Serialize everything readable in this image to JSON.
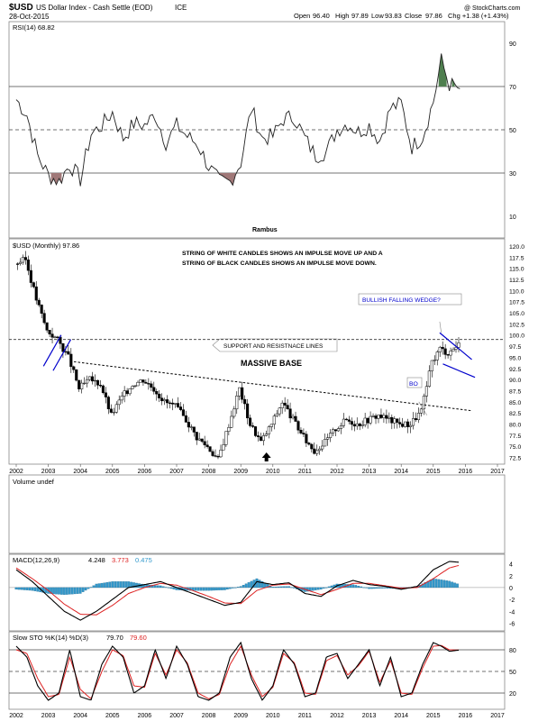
{
  "header": {
    "symbol": "$USD",
    "name": "US Dollar Index - Cash Settle (EOD)",
    "exchange": "ICE",
    "date": "28-Oct-2015",
    "brand": "@ StockCharts.com",
    "quote": {
      "open_label": "Open",
      "open": "96.40",
      "high_label": "High",
      "high": "97.89",
      "low_label": "Low",
      "low": "93.83",
      "close_label": "Close",
      "close": "97.86",
      "change": "Chg +1.38 (+1.43%)"
    }
  },
  "colors": {
    "up": "#ffffff",
    "down": "#000000",
    "annotation_blue": "#0000cc",
    "rsi_low_fill": "#a07878",
    "rsi_high_fill": "#4f7f4f",
    "histogram": "#3399cc",
    "signal_red": "#dd2222"
  },
  "chart_data": [
    {
      "type": "line",
      "title": "RSI(14) 68.82",
      "footer": "Rambus",
      "ylim": [
        0,
        100
      ],
      "yticks": [
        "90",
        "70",
        "50",
        "30",
        "10"
      ],
      "reference_lines": [
        70,
        50,
        30
      ],
      "x": [
        2002.0,
        2002.33,
        2002.67,
        2003.0,
        2003.33,
        2003.67,
        2004.0,
        2004.33,
        2004.67,
        2005.0,
        2005.33,
        2005.67,
        2006.0,
        2006.33,
        2006.67,
        2007.0,
        2007.33,
        2007.67,
        2008.0,
        2008.33,
        2008.67,
        2009.0,
        2009.33,
        2009.67,
        2010.0,
        2010.33,
        2010.67,
        2011.0,
        2011.33,
        2011.67,
        2012.0,
        2012.33,
        2012.67,
        2013.0,
        2013.33,
        2013.67,
        2014.0,
        2014.33,
        2014.67,
        2015.0,
        2015.25,
        2015.5,
        2015.83
      ],
      "values": [
        64,
        57,
        38,
        29,
        26,
        34,
        27,
        48,
        52,
        58,
        46,
        53,
        52,
        57,
        44,
        52,
        47,
        43,
        33,
        26,
        26,
        35,
        60,
        46,
        47,
        55,
        56,
        46,
        38,
        40,
        50,
        53,
        49,
        52,
        45,
        60,
        62,
        42,
        47,
        63,
        82,
        71,
        69
      ]
    },
    {
      "type": "line",
      "title": "$USD (Monthly) 97.86",
      "ylim": [
        71,
        121
      ],
      "yticks": [
        "120.0",
        "117.5",
        "115.0",
        "112.5",
        "110.0",
        "107.5",
        "105.0",
        "102.5",
        "100.0",
        "97.5",
        "95.0",
        "92.5",
        "90.0",
        "87.5",
        "85.0",
        "82.5",
        "80.0",
        "77.5",
        "75.0",
        "72.5"
      ],
      "xticks": [
        "2002",
        "2003",
        "2004",
        "2005",
        "2006",
        "2007",
        "2008",
        "2009",
        "2010",
        "2011",
        "2012",
        "2013",
        "2014",
        "2015",
        "2016",
        "2017"
      ],
      "x": [
        2002.0,
        2002.33,
        2002.67,
        2003.0,
        2003.33,
        2003.67,
        2004.0,
        2004.33,
        2004.67,
        2005.0,
        2005.33,
        2005.67,
        2006.0,
        2006.33,
        2006.67,
        2007.0,
        2007.33,
        2007.67,
        2008.0,
        2008.33,
        2008.67,
        2009.0,
        2009.33,
        2009.67,
        2010.0,
        2010.33,
        2010.67,
        2011.0,
        2011.33,
        2011.67,
        2012.0,
        2012.33,
        2012.67,
        2013.0,
        2013.33,
        2013.67,
        2014.0,
        2014.33,
        2014.67,
        2015.0,
        2015.25,
        2015.5,
        2015.83
      ],
      "values": [
        116,
        117,
        108,
        101,
        99,
        95,
        88,
        90,
        89,
        82,
        86,
        89,
        90,
        88,
        85,
        84,
        81,
        77,
        75,
        72,
        80,
        88,
        80,
        76,
        80,
        85,
        81,
        77,
        74,
        76,
        79,
        81,
        80,
        81,
        82,
        81,
        80,
        80,
        83,
        94,
        97,
        96,
        97.9
      ],
      "annotations": {
        "note_line1": "STRING OF WHITE CANDLES SHOWS AN IMPULSE MOVE UP AND A",
        "note_line2": "STRING OF BLACK CANDLES SHOWS AN IMPULSE MOVE DOWN.",
        "wedge_label": "BULLISH FALLING WEDGE?",
        "support_label": "SUPPORT AND RESISTNACE LINES",
        "base_label": "MASSIVE BASE",
        "breakout_label": "BO"
      },
      "horizontal_line": 99
    },
    {
      "type": "bar",
      "title": "Volume undef"
    },
    {
      "type": "line",
      "title": "MACD(12,26,9)",
      "title_values": [
        "4.248",
        "3.773",
        "0.475"
      ],
      "ylim": [
        -7,
        5
      ],
      "yticks": [
        "4",
        "2",
        "0",
        "-2",
        "-4",
        "-6"
      ],
      "x": [
        2002.0,
        2002.5,
        2003.0,
        2003.5,
        2004.0,
        2004.5,
        2005.0,
        2005.5,
        2006.0,
        2006.5,
        2007.0,
        2007.5,
        2008.0,
        2008.5,
        2009.0,
        2009.5,
        2010.0,
        2010.5,
        2011.0,
        2011.5,
        2012.0,
        2012.5,
        2013.0,
        2013.5,
        2014.0,
        2014.5,
        2015.0,
        2015.5,
        2015.83
      ],
      "series": [
        {
          "name": "MACD",
          "values": [
            3,
            1,
            -1.5,
            -4,
            -5.5,
            -4,
            -2,
            0,
            0.5,
            1,
            0,
            -1,
            -2,
            -3,
            -2.5,
            1,
            0.5,
            0.8,
            -1,
            -1.5,
            0.3,
            1.2,
            0.5,
            0.2,
            -0.3,
            0.2,
            3,
            4.4,
            4.25
          ]
        },
        {
          "name": "Signal",
          "values": [
            3.3,
            1.5,
            -0.5,
            -2.8,
            -4.5,
            -4.6,
            -3,
            -1,
            0,
            0.7,
            0.4,
            -0.5,
            -1.5,
            -2.6,
            -2.7,
            -0.5,
            0.4,
            0.6,
            -0.3,
            -1.2,
            -0.3,
            0.7,
            0.7,
            0.3,
            -0.1,
            0,
            1.5,
            3.3,
            3.77
          ]
        }
      ],
      "histogram": [
        -0.3,
        -0.5,
        -1,
        -1.2,
        -1,
        0.6,
        1,
        1,
        0.5,
        0.3,
        -0.4,
        -0.5,
        -0.5,
        -0.4,
        0.2,
        1.5,
        0.1,
        0.2,
        -0.7,
        -0.3,
        0.6,
        0.5,
        -0.2,
        -0.1,
        -0.2,
        0.2,
        1.5,
        1.1,
        0.48
      ]
    },
    {
      "type": "line",
      "title": "Slow STO %K(14) %D(3)",
      "title_values": [
        "79.70",
        "79.60"
      ],
      "ylim": [
        0,
        100
      ],
      "yticks": [
        "80",
        "50",
        "20"
      ],
      "reference_lines": [
        80,
        50,
        20
      ],
      "x": [
        2002.0,
        2002.33,
        2002.67,
        2003.0,
        2003.33,
        2003.67,
        2004.0,
        2004.33,
        2004.67,
        2005.0,
        2005.33,
        2005.67,
        2006.0,
        2006.33,
        2006.67,
        2007.0,
        2007.33,
        2007.67,
        2008.0,
        2008.33,
        2008.67,
        2009.0,
        2009.33,
        2009.67,
        2010.0,
        2010.33,
        2010.67,
        2011.0,
        2011.33,
        2011.67,
        2012.0,
        2012.33,
        2012.67,
        2013.0,
        2013.33,
        2013.67,
        2014.0,
        2014.33,
        2014.67,
        2015.0,
        2015.25,
        2015.5,
        2015.83
      ],
      "series": [
        {
          "name": "%K",
          "values": [
            85,
            70,
            30,
            10,
            20,
            80,
            15,
            10,
            60,
            85,
            70,
            20,
            30,
            80,
            40,
            85,
            60,
            15,
            10,
            20,
            70,
            90,
            40,
            10,
            30,
            80,
            60,
            15,
            20,
            70,
            75,
            40,
            60,
            80,
            30,
            70,
            15,
            20,
            60,
            90,
            85,
            78,
            79.7
          ]
        },
        {
          "name": "%D",
          "values": [
            80,
            75,
            40,
            15,
            18,
            70,
            25,
            12,
            50,
            80,
            72,
            30,
            28,
            75,
            45,
            80,
            62,
            20,
            12,
            18,
            60,
            85,
            45,
            15,
            28,
            75,
            62,
            20,
            18,
            65,
            72,
            45,
            58,
            78,
            35,
            65,
            20,
            18,
            55,
            85,
            86,
            80,
            79.6
          ]
        }
      ],
      "xticks": [
        "2002",
        "2003",
        "2004",
        "2005",
        "2006",
        "2007",
        "2008",
        "2009",
        "2010",
        "2011",
        "2012",
        "2013",
        "2014",
        "2015",
        "2016",
        "2017"
      ]
    }
  ]
}
